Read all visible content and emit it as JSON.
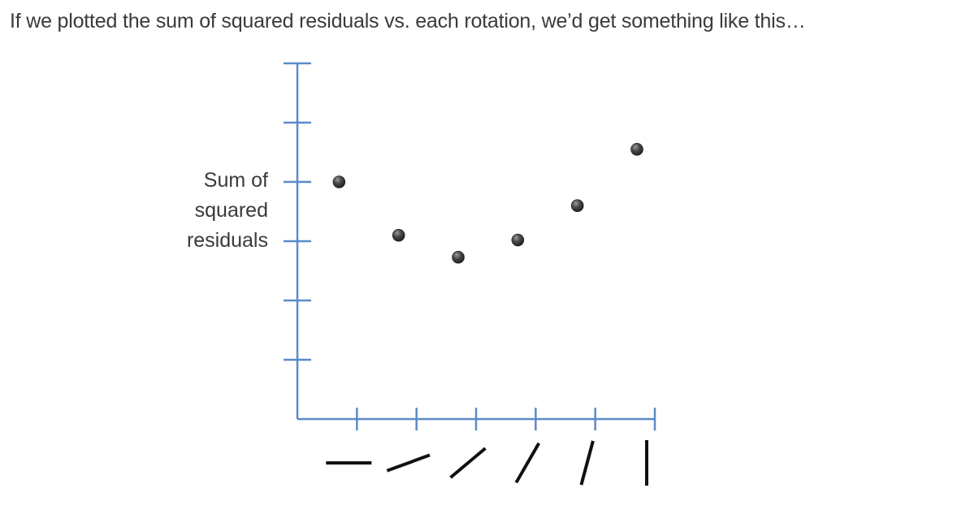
{
  "caption": "If we plotted the sum of squared residuals vs. each rotation, we’d get something like this…",
  "chart_data": {
    "type": "scatter",
    "title": "",
    "xlabel": "",
    "ylabel_lines": [
      "Sum of",
      "squared",
      "residuals"
    ],
    "x_tick_count": 6,
    "y_tick_count": 6,
    "xlim": [
      0,
      6
    ],
    "ylim": [
      0,
      6
    ],
    "x": [
      1,
      2,
      3,
      4,
      5,
      6
    ],
    "y": [
      4.0,
      3.1,
      2.73,
      3.02,
      3.6,
      4.55
    ],
    "x_tick_glyph_angles_deg": [
      0,
      20,
      40,
      60,
      75,
      90
    ],
    "grid": false,
    "colors": {
      "axis": "#5b8ac8",
      "point": "#3c3c3c",
      "glyph": "#111111"
    }
  }
}
